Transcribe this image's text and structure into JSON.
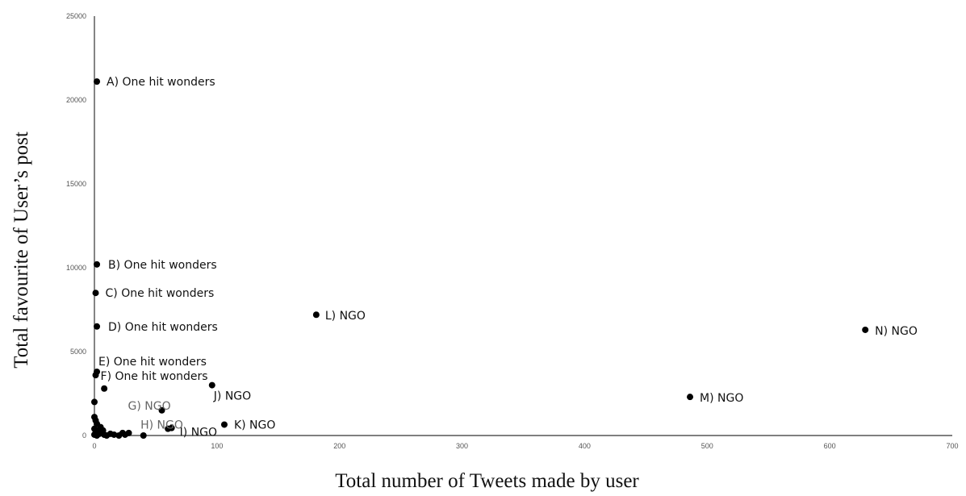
{
  "chart_data": {
    "type": "scatter",
    "title": "",
    "xlabel": "Total number of Tweets made by user",
    "ylabel": "Total favourite of User’s post",
    "xlim": [
      0,
      700
    ],
    "ylim": [
      0,
      25000
    ],
    "x_ticks": [
      "0",
      "100",
      "200",
      "300",
      "400",
      "500",
      "600",
      "700"
    ],
    "y_ticks": [
      "0",
      "5000",
      "10000",
      "15000",
      "20000",
      "25000"
    ],
    "grid": false,
    "legend": "none",
    "labeled_points": [
      {
        "label": "A) One hit wonders",
        "x": 2,
        "y": 21100
      },
      {
        "label": "B) One hit wonders",
        "x": 2,
        "y": 10200
      },
      {
        "label": "C) One hit wonders",
        "x": 1,
        "y": 8500
      },
      {
        "label": "D) One hit wonders",
        "x": 2,
        "y": 6500
      },
      {
        "label": "E) One hit wonders",
        "x": 2,
        "y": 3800
      },
      {
        "label": "F) One hit wonders",
        "x": 1,
        "y": 3600
      },
      {
        "label": "G) NGO",
        "x": 55,
        "y": 1500,
        "muted": true
      },
      {
        "label": "H) NGO",
        "x": 60,
        "y": 400,
        "muted": true
      },
      {
        "label": "I) NGO",
        "x": 63,
        "y": 450
      },
      {
        "label": "J) NGO",
        "x": 96,
        "y": 3000
      },
      {
        "label": "K) NGO",
        "x": 106,
        "y": 650
      },
      {
        "label": "L) NGO",
        "x": 181,
        "y": 7200
      },
      {
        "label": "M) NGO",
        "x": 486,
        "y": 2300
      },
      {
        "label": "N) NGO",
        "x": 629,
        "y": 6300
      }
    ],
    "other_points": [
      {
        "x": 8,
        "y": 2800
      },
      {
        "x": 0,
        "y": 2000
      },
      {
        "x": 0,
        "y": 1100
      },
      {
        "x": 1,
        "y": 900
      },
      {
        "x": 2,
        "y": 700
      },
      {
        "x": 5,
        "y": 500
      },
      {
        "x": 3,
        "y": 300
      },
      {
        "x": 1,
        "y": 150
      },
      {
        "x": 0,
        "y": 50
      },
      {
        "x": 4,
        "y": 100
      },
      {
        "x": 6,
        "y": 200
      },
      {
        "x": 8,
        "y": 50
      },
      {
        "x": 10,
        "y": 0
      },
      {
        "x": 13,
        "y": 100
      },
      {
        "x": 16,
        "y": 50
      },
      {
        "x": 20,
        "y": 0
      },
      {
        "x": 23,
        "y": 150
      },
      {
        "x": 25,
        "y": 50
      },
      {
        "x": 28,
        "y": 150
      },
      {
        "x": 40,
        "y": 0
      },
      {
        "x": 2,
        "y": 0
      },
      {
        "x": 0,
        "y": 400
      },
      {
        "x": 7,
        "y": 300
      }
    ]
  }
}
